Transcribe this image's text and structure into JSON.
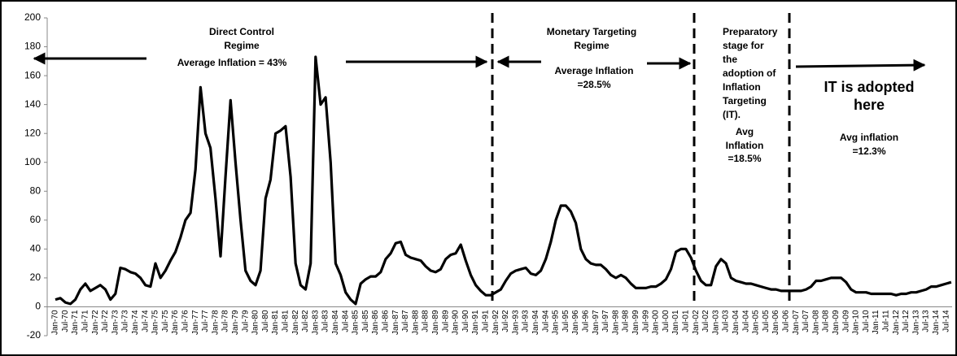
{
  "chart_data": {
    "type": "line",
    "categories": [
      "Jan-70",
      null,
      "Jul-70",
      null,
      "Jan-71",
      null,
      "Jul-71",
      null,
      "Jan-72",
      null,
      "Jul-72",
      null,
      "Jan-73",
      null,
      "Jul-73",
      null,
      "Jan-74",
      null,
      "Jul-74",
      null,
      "Jan-75",
      null,
      "Jul-75",
      null,
      "Jan-76",
      null,
      "Jul-76",
      null,
      "Jan-77",
      null,
      "Jul-77",
      null,
      "Jan-78",
      null,
      "Jul-78",
      null,
      "Jan-79",
      null,
      "Jul-79",
      null,
      "Jan-80",
      null,
      "Jul-80",
      null,
      "Jan-81",
      null,
      "Jul-81",
      null,
      "Jan-82",
      null,
      "Jul-82",
      null,
      "Jan-83",
      null,
      "Jul-83",
      null,
      "Jan-84",
      null,
      "Jul-84",
      null,
      "Jan-85",
      null,
      "Jul-85",
      null,
      "Jan-86",
      null,
      "Jul-86",
      null,
      "Jan-87",
      null,
      "Jul-87",
      null,
      "Jan-88",
      null,
      "Jul-88",
      null,
      "Jan-89",
      null,
      "Jul-89",
      null,
      "Jan-90",
      null,
      "Jul-90",
      null,
      "Jan-91",
      null,
      "Jul-91",
      null,
      "Jan-92",
      null,
      "Jul-92",
      null,
      "Jan-93",
      null,
      "Jul-93",
      null,
      "Jan-94",
      null,
      "Jul-94",
      null,
      "Jan-95",
      null,
      "Jul-95",
      null,
      "Jan-96",
      null,
      "Jul-96",
      null,
      "Jan-97",
      null,
      "Jul-97",
      null,
      "Jan-98",
      null,
      "Jul-98",
      null,
      "Jan-99",
      null,
      "Jul-99",
      null,
      "Jan-00",
      null,
      "Jul-00",
      null,
      "Jan-01",
      null,
      "Jul-01",
      null,
      "Jan-02",
      null,
      "Jul-02",
      null,
      "Jan-03",
      null,
      "Jul-03",
      null,
      "Jan-04",
      null,
      "Jul-04",
      null,
      "Jan-05",
      null,
      "Jul-05",
      null,
      "Jan-06",
      null,
      "Jul-06",
      null,
      "Jan-07",
      null,
      "Jul-07",
      null,
      "Jan-08",
      null,
      "Jul-08",
      null,
      "Jan-09",
      null,
      "Jul-09",
      null,
      "Jan-10",
      null,
      "Jul-10",
      null,
      "Jan-11",
      null,
      "Jul-11",
      null,
      "Jan-12",
      null,
      "Jul-12",
      null,
      "Jan-13",
      null,
      "Jul-13",
      null,
      "Jan-14",
      null,
      "Jul-14",
      null
    ],
    "series": [
      {
        "color": "#000000",
        "values": [
          5,
          6,
          3,
          2,
          5,
          12,
          16,
          11,
          13,
          15,
          12,
          5,
          9,
          27,
          26,
          24,
          23,
          20,
          15,
          14,
          30,
          20,
          25,
          32,
          38,
          48,
          60,
          65,
          95,
          152,
          120,
          110,
          75,
          35,
          90,
          143,
          100,
          60,
          25,
          18,
          15,
          25,
          75,
          88,
          120,
          122,
          125,
          90,
          30,
          15,
          12,
          30,
          173,
          140,
          145,
          100,
          30,
          22,
          10,
          5,
          2,
          16,
          19,
          21,
          21,
          24,
          33,
          37,
          44,
          45,
          36,
          34,
          33,
          32,
          28,
          25,
          24,
          26,
          33,
          36,
          37,
          43,
          32,
          22,
          15,
          11,
          8,
          8,
          10,
          12,
          18,
          23,
          25,
          26,
          27,
          23,
          22,
          25,
          33,
          45,
          60,
          70,
          70,
          66,
          58,
          40,
          33,
          30,
          29,
          29,
          26,
          22,
          20,
          22,
          20,
          16,
          13,
          13,
          13,
          14,
          14,
          16,
          19,
          26,
          38,
          40,
          40,
          34,
          25,
          18,
          15,
          15,
          28,
          33,
          30,
          20,
          18,
          17,
          16,
          16,
          15,
          14,
          13,
          12,
          12,
          11,
          11,
          11,
          11,
          11,
          12,
          14,
          18,
          18,
          19,
          20,
          20,
          20,
          17,
          12,
          10,
          10,
          10,
          9,
          9,
          9,
          9,
          9,
          8,
          9,
          9,
          10,
          10,
          11,
          12,
          14,
          14,
          15,
          16,
          17
        ]
      }
    ],
    "ylim": [
      -20,
      200
    ],
    "yticks": [
      -20,
      0,
      20,
      40,
      60,
      80,
      100,
      120,
      140,
      160,
      180,
      200
    ],
    "annotations": [
      "Direct Control",
      "Regime",
      "Average Inflation = 43%",
      "Monetary Targeting",
      "Regime",
      "Average Inflation",
      "=28.5%",
      "Preparatory",
      "stage for",
      "the",
      "adoption of",
      "Inflation",
      "Targeting",
      "(IT).",
      "Avg",
      "Inflation",
      "=18.5%",
      "IT is adopted",
      "here",
      "Avg inflation",
      "=12.3%"
    ]
  }
}
